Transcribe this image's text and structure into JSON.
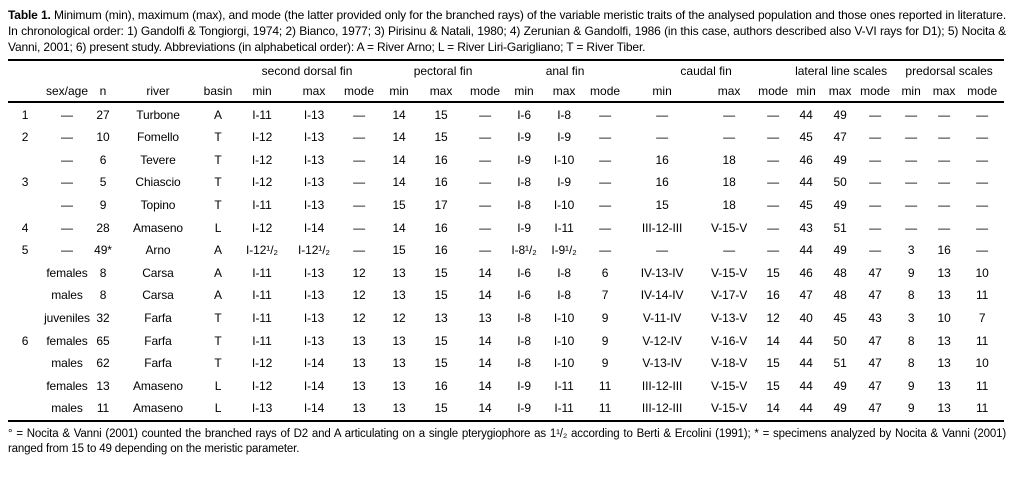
{
  "caption": {
    "lead": "Table 1.",
    "body": "Minimum (min), maximum (max), and mode (the latter provided only for the branched rays) of the variable meristic traits of the analysed population and those ones reported in literature. In chronological order: 1) Gandolfi & Tongiorgi, 1974; 2) Bianco, 1977; 3) Pirisinu & Natali, 1980; 4) Zerunian & Gandolfi, 1986 (in this case, authors described also V-VI rays for D1); 5) Nocita & Vanni, 2001; 6) present study. Abbreviations (in alphabetical order): A = River Arno; L = River Liri-Garigliano; T = River Tiber."
  },
  "table": {
    "leading_headers": [
      "",
      "sex/age",
      "n",
      "river",
      "basin"
    ],
    "groups": [
      "second dorsal fin",
      "pectoral fin",
      "anal fin",
      "caudal fin",
      "lateral line scales",
      "predorsal scales"
    ],
    "sub_headers": [
      "min",
      "max",
      "mode"
    ],
    "rows": [
      {
        "ref": "1",
        "sex_age": "—",
        "n": "27",
        "river": "Turbone",
        "basin": "A",
        "values": [
          "I-11",
          "I-13",
          "—",
          "14",
          "15",
          "—",
          "I-6",
          "I-8",
          "—",
          "—",
          "—",
          "—",
          "44",
          "49",
          "—",
          "—",
          "—",
          "—"
        ]
      },
      {
        "ref": "2",
        "sex_age": "—",
        "n": "10",
        "river": "Fomello",
        "basin": "T",
        "values": [
          "I-12",
          "I-13",
          "—",
          "14",
          "15",
          "—",
          "I-9",
          "I-9",
          "—",
          "—",
          "—",
          "—",
          "45",
          "47",
          "—",
          "—",
          "—",
          "—"
        ]
      },
      {
        "ref": "",
        "sex_age": "—",
        "n": "6",
        "river": "Tevere",
        "basin": "T",
        "values": [
          "I-12",
          "I-13",
          "—",
          "14",
          "16",
          "—",
          "I-9",
          "I-10",
          "—",
          "16",
          "18",
          "—",
          "46",
          "49",
          "—",
          "—",
          "—",
          "—"
        ]
      },
      {
        "ref": "3",
        "sex_age": "—",
        "n": "5",
        "river": "Chiascio",
        "basin": "T",
        "values": [
          "I-12",
          "I-13",
          "—",
          "14",
          "16",
          "—",
          "I-8",
          "I-9",
          "—",
          "16",
          "18",
          "—",
          "44",
          "50",
          "—",
          "—",
          "—",
          "—"
        ]
      },
      {
        "ref": "",
        "sex_age": "—",
        "n": "9",
        "river": "Topino",
        "basin": "T",
        "values": [
          "I-11",
          "I-13",
          "—",
          "15",
          "17",
          "—",
          "I-8",
          "I-10",
          "—",
          "15",
          "18",
          "—",
          "45",
          "49",
          "—",
          "—",
          "—",
          "—"
        ]
      },
      {
        "ref": "4",
        "sex_age": "—",
        "n": "28",
        "river": "Amaseno",
        "basin": "L",
        "values": [
          "I-12",
          "I-14",
          "—",
          "14",
          "16",
          "—",
          "I-9",
          "I-11",
          "—",
          "III-12-III",
          "V-15-V",
          "—",
          "43",
          "51",
          "—",
          "—",
          "—",
          "—"
        ]
      },
      {
        "ref": "5",
        "sex_age": "—",
        "n": "49*",
        "river": "Arno",
        "basin": "A",
        "values": [
          "I-12¹/₂",
          "I-12¹/₂",
          "—",
          "15",
          "16",
          "—",
          "I-8¹/₂",
          "I-9¹/₂",
          "—",
          "—",
          "—",
          "—",
          "44",
          "49",
          "—",
          "3",
          "16",
          "—"
        ]
      },
      {
        "ref": "",
        "sex_age": "females",
        "n": "8",
        "river": "Carsa",
        "basin": "A",
        "values": [
          "I-11",
          "I-13",
          "12",
          "13",
          "15",
          "14",
          "I-6",
          "I-8",
          "6",
          "IV-13-IV",
          "V-15-V",
          "15",
          "46",
          "48",
          "47",
          "9",
          "13",
          "10"
        ]
      },
      {
        "ref": "",
        "sex_age": "males",
        "n": "8",
        "river": "Carsa",
        "basin": "A",
        "values": [
          "I-11",
          "I-13",
          "12",
          "13",
          "15",
          "14",
          "I-6",
          "I-8",
          "7",
          "IV-14-IV",
          "V-17-V",
          "16",
          "47",
          "48",
          "47",
          "8",
          "13",
          "11"
        ]
      },
      {
        "ref": "",
        "sex_age": "juveniles",
        "n": "32",
        "river": "Farfa",
        "basin": "T",
        "values": [
          "I-11",
          "I-13",
          "12",
          "12",
          "13",
          "13",
          "I-8",
          "I-10",
          "9",
          "V-11-IV",
          "V-13-V",
          "12",
          "40",
          "45",
          "43",
          "3",
          "10",
          "7"
        ]
      },
      {
        "ref": "6",
        "sex_age": "females",
        "n": "65",
        "river": "Farfa",
        "basin": "T",
        "values": [
          "I-11",
          "I-13",
          "13",
          "13",
          "15",
          "14",
          "I-8",
          "I-10",
          "9",
          "V-12-IV",
          "V-16-V",
          "14",
          "44",
          "50",
          "47",
          "8",
          "13",
          "11"
        ]
      },
      {
        "ref": "",
        "sex_age": "males",
        "n": "62",
        "river": "Farfa",
        "basin": "T",
        "values": [
          "I-12",
          "I-14",
          "13",
          "13",
          "15",
          "14",
          "I-8",
          "I-10",
          "9",
          "V-13-IV",
          "V-18-V",
          "15",
          "44",
          "51",
          "47",
          "8",
          "13",
          "10"
        ]
      },
      {
        "ref": "",
        "sex_age": "females",
        "n": "13",
        "river": "Amaseno",
        "basin": "L",
        "values": [
          "I-12",
          "I-14",
          "13",
          "13",
          "16",
          "14",
          "I-9",
          "I-11",
          "11",
          "III-12-III",
          "V-15-V",
          "15",
          "44",
          "49",
          "47",
          "9",
          "13",
          "11"
        ]
      },
      {
        "ref": "",
        "sex_age": "males",
        "n": "11",
        "river": "Amaseno",
        "basin": "L",
        "values": [
          "I-13",
          "I-14",
          "13",
          "13",
          "15",
          "14",
          "I-9",
          "I-11",
          "11",
          "III-12-III",
          "V-15-V",
          "14",
          "44",
          "49",
          "47",
          "9",
          "13",
          "11"
        ]
      }
    ]
  },
  "footnote": "° = Nocita & Vanni (2001) counted the branched rays of D2 and A articulating on a single pterygiophore as 1¹/₂ according to Berti & Ercolini (1991); * = specimens analyzed by Nocita & Vanni (2001) ranged from 15 to 49 depending on the meristic parameter."
}
